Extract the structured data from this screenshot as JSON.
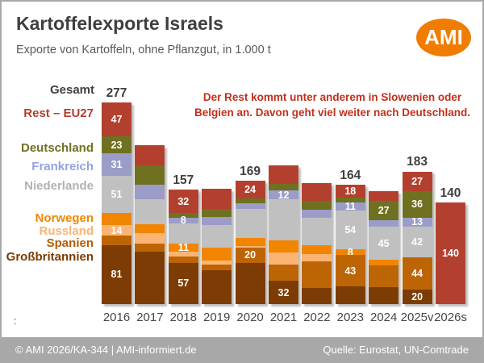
{
  "header": {
    "title": "Kartoffelexporte Israels",
    "subtitle": "Exporte von Kartoffeln, ohne Pflanzgut, in 1.000 t",
    "logo_text": "AMI",
    "logo_color": "#f07d00"
  },
  "annotation": {
    "line1": "Der Rest kommt unter anderem in Slowenien oder",
    "line2": "Belgien an. Davon geht viel weiter nach Deutschland.",
    "color": "#c2301c"
  },
  "legend": {
    "gesamt_label": "Gesamt",
    "items": [
      {
        "key": "rest",
        "label": "Rest – EU27",
        "color": "#b23f2e"
      },
      {
        "key": "deutschland",
        "label": "Deutschland",
        "color": "#6f7120"
      },
      {
        "key": "frankreich",
        "label": "Frankreich",
        "color": "#93a3e0"
      },
      {
        "key": "niederlande",
        "label": "Niederlande",
        "color": "#b2b2b2"
      },
      {
        "key": "norwegen",
        "label": "Norwegen",
        "color": "#f28500"
      },
      {
        "key": "russland",
        "label": "Russland",
        "color": "#fab473"
      },
      {
        "key": "spanien",
        "label": "Spanien",
        "color": "#b15e04"
      },
      {
        "key": "grossbritannien",
        "label": "Großbritannien",
        "color": "#7c3c03"
      }
    ]
  },
  "chart_data": {
    "type": "bar",
    "subtype": "stacked",
    "unit": "1.000 t",
    "title": "Kartoffelexporte Israels",
    "xlabel": "",
    "ylabel": "",
    "axes_visible": false,
    "grid": false,
    "legend_position": "left",
    "series_order_bottom_to_top": [
      "Großbritannien",
      "Spanien",
      "Russland",
      "Norwegen",
      "Niederlande",
      "Frankreich",
      "Deutschland",
      "Rest – EU27"
    ],
    "colors": {
      "Großbritannien": "#7c3c03",
      "Spanien": "#bd6504",
      "Russland": "#fab473",
      "Norwegen": "#f28500",
      "Niederlande": "#c0c0c0",
      "Frankreich": "#9c9cc8",
      "Deutschland": "#6f7120",
      "Rest – EU27": "#b3402f"
    },
    "years": [
      {
        "year": "2016",
        "total": 277,
        "total_label": "277",
        "segments": [
          {
            "name": "Großbritannien",
            "value": 81,
            "label": "81"
          },
          {
            "name": "Spanien",
            "value": 13
          },
          {
            "name": "Russland",
            "value": 14,
            "label": "14"
          },
          {
            "name": "Norwegen",
            "value": 17
          },
          {
            "name": "Niederlande",
            "value": 51,
            "label": "51"
          },
          {
            "name": "Frankreich",
            "value": 31,
            "label": "31"
          },
          {
            "name": "Deutschland",
            "value": 23,
            "label": "23"
          },
          {
            "name": "Rest – EU27",
            "value": 47,
            "label": "47"
          }
        ]
      },
      {
        "year": "2017",
        "total": 218,
        "segments": [
          {
            "name": "Großbritannien",
            "value": 72
          },
          {
            "name": "Spanien",
            "value": 11
          },
          {
            "name": "Russland",
            "value": 15
          },
          {
            "name": "Norwegen",
            "value": 12
          },
          {
            "name": "Niederlande",
            "value": 34
          },
          {
            "name": "Frankreich",
            "value": 20
          },
          {
            "name": "Deutschland",
            "value": 26
          },
          {
            "name": "Rest – EU27",
            "value": 28
          }
        ]
      },
      {
        "year": "2018",
        "total": 157,
        "total_label": "157",
        "segments": [
          {
            "name": "Großbritannien",
            "value": 57,
            "label": "57"
          },
          {
            "name": "Spanien",
            "value": 8
          },
          {
            "name": "Russland",
            "value": 7
          },
          {
            "name": "Norwegen",
            "value": 11,
            "label": "11"
          },
          {
            "name": "Niederlande",
            "value": 28
          },
          {
            "name": "Frankreich",
            "value": 8,
            "label": "8"
          },
          {
            "name": "Deutschland",
            "value": 6
          },
          {
            "name": "Rest – EU27",
            "value": 32,
            "label": "32"
          }
        ]
      },
      {
        "year": "2019",
        "total": 158,
        "segments": [
          {
            "name": "Großbritannien",
            "value": 47
          },
          {
            "name": "Spanien",
            "value": 7
          },
          {
            "name": "Russland",
            "value": 6
          },
          {
            "name": "Norwegen",
            "value": 17
          },
          {
            "name": "Niederlande",
            "value": 32
          },
          {
            "name": "Frankreich",
            "value": 11
          },
          {
            "name": "Deutschland",
            "value": 11
          },
          {
            "name": "Rest – EU27",
            "value": 27
          }
        ]
      },
      {
        "year": "2020",
        "total": 169,
        "total_label": "169",
        "segments": [
          {
            "name": "Großbritannien",
            "value": 57
          },
          {
            "name": "Spanien",
            "value": 20,
            "label": "20"
          },
          {
            "name": "Russland",
            "value": 3
          },
          {
            "name": "Norwegen",
            "value": 11
          },
          {
            "name": "Niederlande",
            "value": 40
          },
          {
            "name": "Frankreich",
            "value": 8
          },
          {
            "name": "Deutschland",
            "value": 6
          },
          {
            "name": "Rest – EU27",
            "value": 24,
            "label": "24"
          }
        ]
      },
      {
        "year": "2021",
        "total": 190,
        "segments": [
          {
            "name": "Großbritannien",
            "value": 32,
            "label": "32"
          },
          {
            "name": "Spanien",
            "value": 22
          },
          {
            "name": "Russland",
            "value": 17
          },
          {
            "name": "Norwegen",
            "value": 17
          },
          {
            "name": "Niederlande",
            "value": 56
          },
          {
            "name": "Frankreich",
            "value": 12,
            "label": "12"
          },
          {
            "name": "Deutschland",
            "value": 9
          },
          {
            "name": "Rest – EU27",
            "value": 25
          }
        ]
      },
      {
        "year": "2022",
        "total": 166,
        "segments": [
          {
            "name": "Großbritannien",
            "value": 22
          },
          {
            "name": "Spanien",
            "value": 37
          },
          {
            "name": "Russland",
            "value": 10
          },
          {
            "name": "Norwegen",
            "value": 12
          },
          {
            "name": "Niederlande",
            "value": 38
          },
          {
            "name": "Frankreich",
            "value": 11
          },
          {
            "name": "Deutschland",
            "value": 12
          },
          {
            "name": "Rest – EU27",
            "value": 24
          }
        ]
      },
      {
        "year": "2023",
        "total": 164,
        "total_label": "164",
        "segments": [
          {
            "name": "Großbritannien",
            "value": 24
          },
          {
            "name": "Spanien",
            "value": 43,
            "label": "43"
          },
          {
            "name": "Norwegen",
            "value": 8,
            "label": "8"
          },
          {
            "name": "Niederlande",
            "value": 54,
            "label": "54"
          },
          {
            "name": "Frankreich",
            "value": 11,
            "label": "11"
          },
          {
            "name": "Deutschland",
            "value": 6
          },
          {
            "name": "Rest – EU27",
            "value": 18,
            "label": "18"
          }
        ]
      },
      {
        "year": "2024",
        "total": 155,
        "segments": [
          {
            "name": "Großbritannien",
            "value": 23
          },
          {
            "name": "Spanien",
            "value": 30
          },
          {
            "name": "Norwegen",
            "value": 8
          },
          {
            "name": "Niederlande",
            "value": 45,
            "label": "45"
          },
          {
            "name": "Frankreich",
            "value": 9
          },
          {
            "name": "Deutschland",
            "value": 27,
            "label": "27"
          },
          {
            "name": "Rest – EU27",
            "value": 13
          }
        ]
      },
      {
        "year": "2025v",
        "total": 183,
        "total_label": "183",
        "segments": [
          {
            "name": "Großbritannien",
            "value": 20,
            "label": "20"
          },
          {
            "name": "Spanien",
            "value": 44,
            "label": "44"
          },
          {
            "name": "Niederlande",
            "value": 42,
            "label": "42"
          },
          {
            "name": "Frankreich",
            "value": 13,
            "label": "13"
          },
          {
            "name": "Deutschland",
            "value": 36,
            "label": "36"
          },
          {
            "name": "Rest – EU27",
            "value": 27,
            "label": "27"
          }
        ]
      },
      {
        "year": "2026s",
        "total": 140,
        "total_label": "140",
        "segments": [
          {
            "name": "Rest – EU27",
            "value": 140,
            "label": "140"
          }
        ]
      }
    ]
  },
  "misc": {
    "colon": ":"
  },
  "footer": {
    "left": "© AMI 2026/KA-344 | AMI-informiert.de",
    "right": "Quelle: Eurostat, UN-Comtrade"
  }
}
